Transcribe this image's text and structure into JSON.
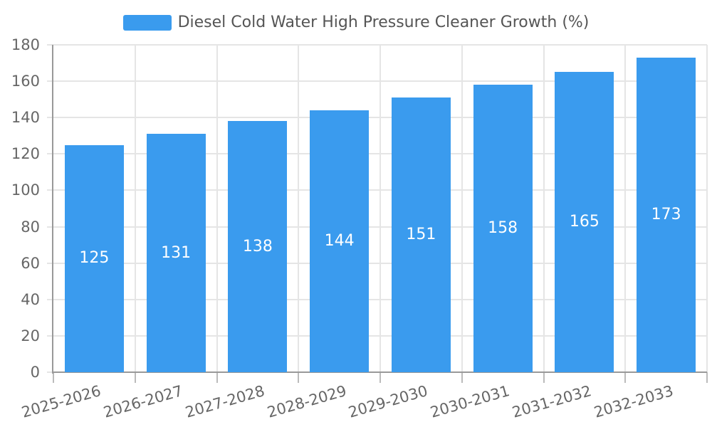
{
  "chart_data": {
    "type": "bar",
    "title": "Diesel Cold Water High Pressure Cleaner Growth (%)",
    "legend": [
      "Diesel Cold Water High Pressure Cleaner Growth (%)"
    ],
    "legend_position": "top",
    "categories": [
      "2025-2026",
      "2026-2027",
      "2027-2028",
      "2028-2029",
      "2029-2030",
      "2030-2031",
      "2031-2032",
      "2032-2033"
    ],
    "values": [
      125,
      131,
      138,
      144,
      151,
      158,
      165,
      173
    ],
    "xlabel": "",
    "ylabel": "",
    "ylim": [
      0,
      180
    ],
    "yticks": [
      0,
      20,
      40,
      60,
      80,
      100,
      120,
      140,
      160,
      180
    ],
    "grid": true,
    "x_label_rotation_deg": -16,
    "value_labels_inside_bars": true,
    "colors": {
      "bar": "#3a9bee",
      "grid_line": "#e5e5e5",
      "axis_line": "#999999",
      "x_tick": "#bbbbbb",
      "axis_label": "#666666",
      "title_text": "#555555",
      "value_label": "#ffffff",
      "background": "#ffffff"
    }
  }
}
